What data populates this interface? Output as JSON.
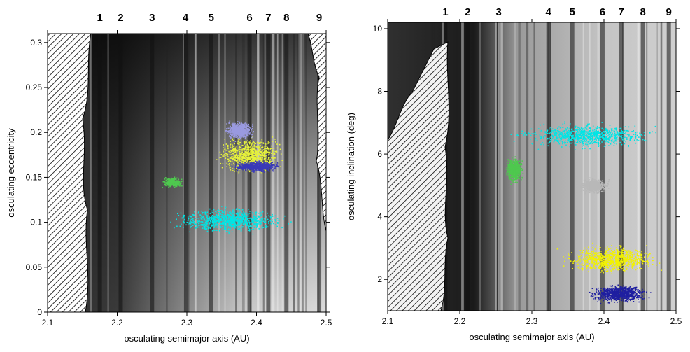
{
  "chart_data": [
    {
      "type": "scatter",
      "title": "",
      "xlabel": "osculating semimajor axis (AU)",
      "ylabel": "osculating eccentricity",
      "xlim": [
        2.1,
        2.5
      ],
      "ylim": [
        0,
        0.31
      ],
      "xticks": [
        "2.1",
        "2.2",
        "2.3",
        "2.4",
        "2.5"
      ],
      "yticks": [
        "0",
        "0.05",
        "0.1",
        "0.15",
        "0.2",
        "0.25",
        "0.3"
      ],
      "resonance_labels": [
        {
          "label": "1",
          "x": 2.175
        },
        {
          "label": "2",
          "x": 2.205
        },
        {
          "label": "3",
          "x": 2.25
        },
        {
          "label": "4",
          "x": 2.298
        },
        {
          "label": "5",
          "x": 2.335
        },
        {
          "label": "6",
          "x": 2.39
        },
        {
          "label": "7",
          "x": 2.417
        },
        {
          "label": "8",
          "x": 2.443
        },
        {
          "label": "9",
          "x": 2.49
        }
      ],
      "clusters": [
        {
          "color": "#00e5e5",
          "x_range": [
            2.26,
            2.46
          ],
          "y_range": [
            0.085,
            0.12
          ]
        },
        {
          "color": "#e6f23a",
          "x_range": [
            2.33,
            2.45
          ],
          "y_range": [
            0.15,
            0.2
          ]
        },
        {
          "color": "#3a3ab8",
          "x_range": [
            2.36,
            2.44
          ],
          "y_range": [
            0.155,
            0.17
          ]
        },
        {
          "color": "#4fc84f",
          "x_range": [
            2.26,
            2.3
          ],
          "y_range": [
            0.138,
            0.152
          ]
        },
        {
          "color": "#9a9ae0",
          "x_range": [
            2.35,
            2.4
          ],
          "y_range": [
            0.19,
            0.215
          ]
        }
      ]
    },
    {
      "type": "scatter",
      "title": "",
      "xlabel": "osculating semimajor axis (AU)",
      "ylabel": "osculating inclination (deg)",
      "xlim": [
        2.1,
        2.5
      ],
      "ylim": [
        1,
        10.2
      ],
      "xticks": [
        "2.1",
        "2.2",
        "2.3",
        "2.4",
        "2.5"
      ],
      "yticks": [
        "2",
        "4",
        "6",
        "8",
        "10"
      ],
      "resonance_labels": [
        {
          "label": "1",
          "x": 2.18
        },
        {
          "label": "2",
          "x": 2.211
        },
        {
          "label": "3",
          "x": 2.254
        },
        {
          "label": "4",
          "x": 2.323
        },
        {
          "label": "5",
          "x": 2.356
        },
        {
          "label": "6",
          "x": 2.398
        },
        {
          "label": "7",
          "x": 2.424
        },
        {
          "label": "8",
          "x": 2.454
        },
        {
          "label": "9",
          "x": 2.49
        }
      ],
      "clusters": [
        {
          "color": "#00e5e5",
          "x_range": [
            2.26,
            2.49
          ],
          "y_range": [
            6.1,
            7.1
          ]
        },
        {
          "color": "#4fc84f",
          "x_range": [
            2.26,
            2.29
          ],
          "y_range": [
            5.0,
            6.0
          ]
        },
        {
          "color": "#b8b8b8",
          "x_range": [
            2.36,
            2.41
          ],
          "y_range": [
            4.7,
            5.3
          ]
        },
        {
          "color": "#f2f200",
          "x_range": [
            2.33,
            2.49
          ],
          "y_range": [
            2.1,
            3.2
          ]
        },
        {
          "color": "#1f1fa0",
          "x_range": [
            2.37,
            2.47
          ],
          "y_range": [
            1.2,
            1.9
          ]
        }
      ]
    }
  ]
}
